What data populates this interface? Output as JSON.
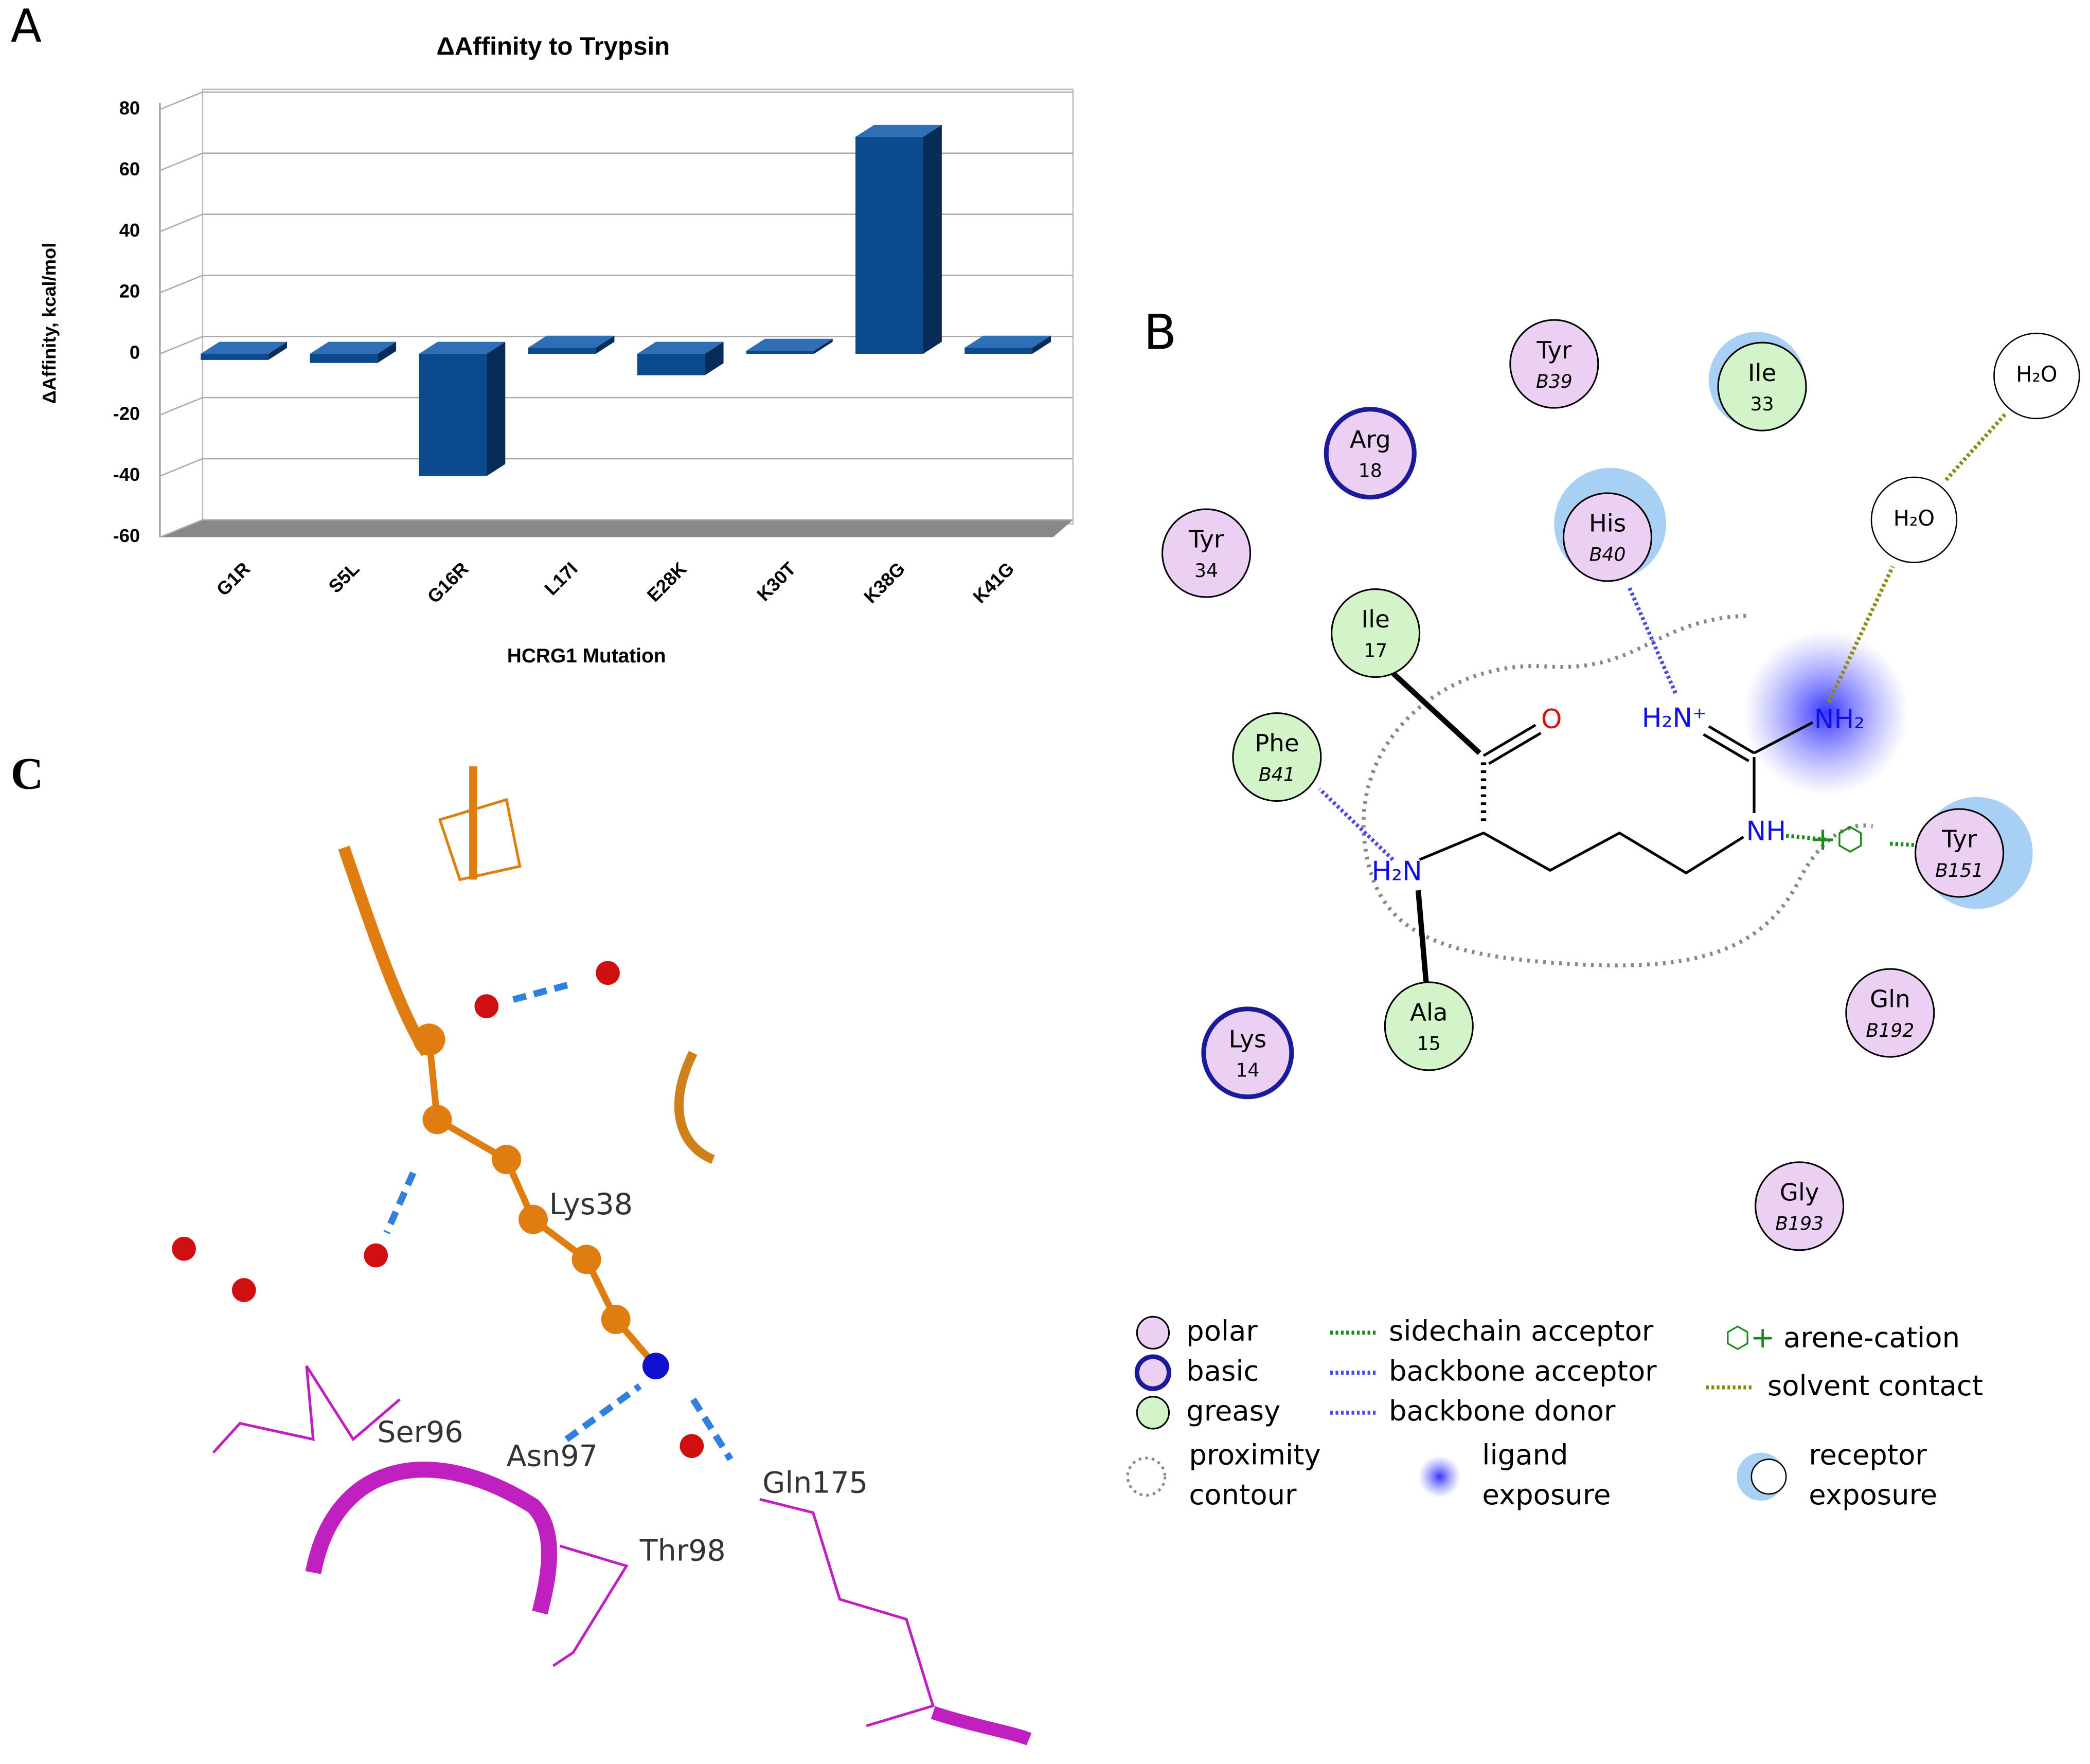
{
  "panel_labels": [
    "A",
    "B",
    "C"
  ],
  "chart_data": {
    "type": "bar",
    "title": "ΔAffinity to Trypsin",
    "x_label": "HCRG1 Mutation",
    "y_label": "ΔAffinity, kcal/mol",
    "categories": [
      "G1R",
      "S5L",
      "G16R",
      "L17I",
      "E28K",
      "K30T",
      "K38G",
      "K41G"
    ],
    "values": [
      -2,
      -3,
      -40,
      2,
      -7,
      1,
      71,
      2
    ],
    "color": "#0b4a8c",
    "ylim": [
      -60,
      80
    ],
    "yticks": [
      -60,
      -40,
      -20,
      0,
      20,
      40,
      60,
      80
    ],
    "grid": true
  },
  "interaction_diagram": {
    "residues": [
      {
        "name": "Tyr",
        "number": "B39",
        "kind": "polar"
      },
      {
        "name": "Ile",
        "number": "33",
        "kind": "greasy"
      },
      {
        "name": "Arg",
        "number": "18",
        "kind": "basic"
      },
      {
        "name": "His",
        "number": "B40",
        "kind": "polar"
      },
      {
        "name": "Tyr",
        "number": "34",
        "kind": "polar"
      },
      {
        "name": "Ile",
        "number": "17",
        "kind": "greasy"
      },
      {
        "name": "Phe",
        "number": "B41",
        "kind": "greasy"
      },
      {
        "name": "Tyr",
        "number": "B151",
        "kind": "polar"
      },
      {
        "name": "Gln",
        "number": "B192",
        "kind": "polar"
      },
      {
        "name": "Lys",
        "number": "14",
        "kind": "basic"
      },
      {
        "name": "Ala",
        "number": "15",
        "kind": "greasy"
      },
      {
        "name": "Gly",
        "number": "B193",
        "kind": "polar"
      }
    ],
    "waters": [
      "H₂O",
      "H₂O"
    ],
    "atoms": [
      "O",
      "H₂N⁺",
      "NH₂",
      "NH",
      "H₂N"
    ],
    "legend": [
      {
        "lines": [
          "polar"
        ]
      },
      {
        "lines": [
          "basic"
        ]
      },
      {
        "lines": [
          "greasy"
        ]
      },
      {
        "lines": [
          "sidechain acceptor"
        ]
      },
      {
        "lines": [
          "backbone acceptor"
        ]
      },
      {
        "lines": [
          "backbone donor"
        ]
      },
      {
        "lines": [
          "arene-cation"
        ]
      },
      {
        "lines": [
          "solvent contact"
        ]
      },
      {
        "lines": [
          "proximity",
          "contour"
        ]
      },
      {
        "lines": [
          "ligand",
          "exposure"
        ]
      },
      {
        "lines": [
          "receptor",
          "exposure"
        ]
      }
    ]
  },
  "structure_labels": [
    "Lys38",
    "Ser96",
    "Asn97",
    "Thr98",
    "Gln175"
  ]
}
